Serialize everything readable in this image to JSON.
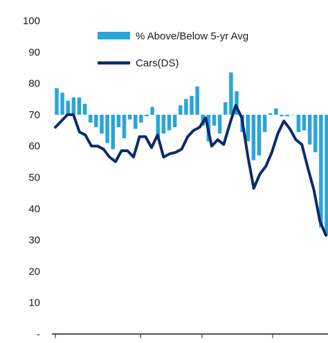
{
  "chart_data": {
    "type": "bar+line",
    "y_ticks": [
      "100",
      "90",
      "80",
      "70",
      "60",
      "50",
      "40",
      "30",
      "20",
      "10",
      "-"
    ],
    "ylim": [
      0,
      100
    ],
    "bar_baseline": 70,
    "legend": {
      "bar_label": "% Above/Below  5-yr Avg",
      "line_label": "Cars(DS)"
    },
    "colors": {
      "bar": "#2aa5d9",
      "line": "#0b2b6b"
    },
    "series": [
      {
        "name": "% Above/Below  5-yr Avg",
        "kind": "bar",
        "values": [
          78.5,
          77,
          74.5,
          75.5,
          75.5,
          73.5,
          67.5,
          66,
          64,
          61,
          59,
          66,
          62.5,
          68.5,
          65.5,
          67.5,
          69.5,
          72.5,
          62.5,
          64,
          65,
          66,
          73,
          75,
          76,
          79,
          66.5,
          61.5,
          66.5,
          64,
          74,
          83.5,
          77.5,
          64.5,
          61.5,
          55.5,
          57,
          64.5,
          70.5,
          72,
          69.5,
          69.5,
          70,
          64.5,
          65,
          60.5,
          58,
          34,
          31.5
        ]
      },
      {
        "name": "Cars(DS)",
        "kind": "line",
        "values": [
          66,
          68,
          70,
          70,
          64.5,
          63.5,
          60,
          60,
          59,
          56.5,
          55,
          58.5,
          58.5,
          56.5,
          63,
          63,
          59.5,
          63.5,
          56.5,
          57.5,
          58,
          59,
          63,
          65,
          66,
          69,
          60,
          62,
          60.5,
          67,
          73,
          69,
          57,
          46.5,
          51,
          53.5,
          58,
          64,
          68,
          65.5,
          62,
          60.5,
          53,
          46,
          36,
          31.5
        ]
      }
    ]
  }
}
